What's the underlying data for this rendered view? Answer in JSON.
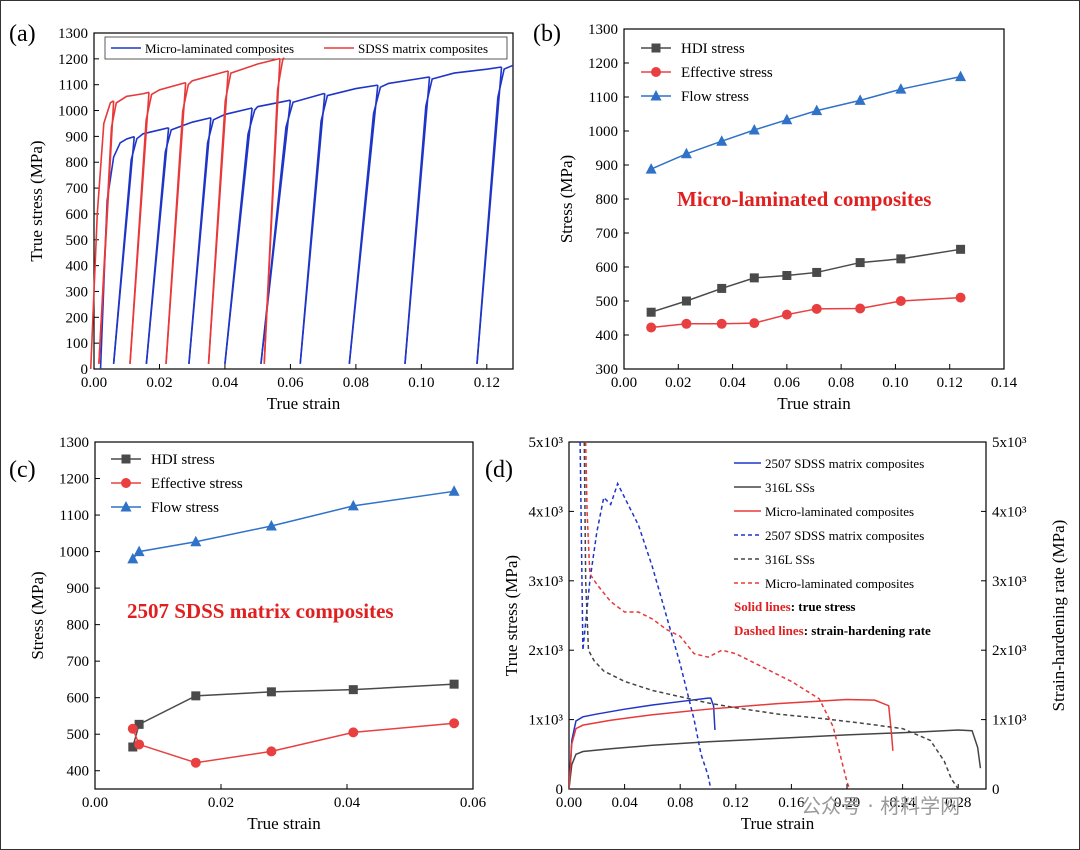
{
  "colors": {
    "blue": "#1f35c8",
    "red": "#e8393a",
    "gray": "#454545",
    "hdi": "#4a4a4a",
    "eff": "#e84040",
    "flow": "#2f72c8",
    "accent_red": "#e02020"
  },
  "watermark": "公众号 · 材料学网",
  "chart_data": [
    {
      "panel": "(a)",
      "type": "line",
      "xlabel": "True strain",
      "ylabel": "True stress (MPa)",
      "xlim": [
        0,
        0.128
      ],
      "ylim": [
        0,
        1300
      ],
      "xticks": [
        "0.00",
        "0.02",
        "0.04",
        "0.06",
        "0.08",
        "0.10",
        "0.12"
      ],
      "yticks": [
        "0",
        "100",
        "200",
        "300",
        "400",
        "500",
        "600",
        "700",
        "800",
        "900",
        "1000",
        "1100",
        "1200",
        "1300"
      ],
      "legend": [
        "Micro-laminated composites",
        "SDSS matrix composites"
      ],
      "series": [
        {
          "name": "Micro-laminated composites",
          "color": "blue",
          "envelope_x": [
            0.004,
            0.006,
            0.008,
            0.01,
            0.015,
            0.02,
            0.03,
            0.04,
            0.05,
            0.06,
            0.07,
            0.08,
            0.09,
            0.1,
            0.11,
            0.12,
            0.128
          ],
          "envelope_y": [
            650,
            820,
            875,
            890,
            910,
            925,
            955,
            985,
            1015,
            1040,
            1065,
            1085,
            1105,
            1125,
            1145,
            1160,
            1175
          ],
          "unload_x": [
            0.0123,
            0.0228,
            0.0357,
            0.0483,
            0.06,
            0.0705,
            0.0867,
            0.1025,
            0.1245
          ],
          "unload_to_x": [
            0.006,
            0.016,
            0.029,
            0.04,
            0.051,
            0.063,
            0.078,
            0.095,
            0.117
          ],
          "unload_to_y": 20
        },
        {
          "name": "SDSS matrix composites",
          "color": "red",
          "envelope_x": [
            0.001,
            0.003,
            0.005,
            0.007,
            0.01,
            0.015,
            0.02,
            0.03,
            0.04,
            0.05,
            0.058
          ],
          "envelope_y": [
            600,
            950,
            1030,
            1045,
            1055,
            1065,
            1080,
            1115,
            1150,
            1180,
            1205
          ],
          "unload_x": [
            0.006,
            0.0168,
            0.028,
            0.041,
            0.0568
          ],
          "unload_to_x": [
            0.0015,
            0.011,
            0.022,
            0.035,
            0.052
          ],
          "unload_to_y": 20
        }
      ]
    },
    {
      "panel": "(b)",
      "type": "line",
      "xlabel": "True strain",
      "ylabel": "Stress (MPa)",
      "xlim": [
        0,
        0.14
      ],
      "ylim": [
        300,
        1300
      ],
      "xticks": [
        "0.00",
        "0.02",
        "0.04",
        "0.06",
        "0.08",
        "0.10",
        "0.12",
        "0.14"
      ],
      "yticks": [
        "300",
        "400",
        "500",
        "600",
        "700",
        "800",
        "900",
        "1000",
        "1100",
        "1200",
        "1300"
      ],
      "annotation": "Micro-laminated composites",
      "x": [
        0.01,
        0.023,
        0.036,
        0.048,
        0.06,
        0.071,
        0.087,
        0.102,
        0.124
      ],
      "series": [
        {
          "name": "HDI stress",
          "color": "hdi",
          "marker": "square",
          "values": [
            467,
            500,
            537,
            568,
            575,
            584,
            613,
            624,
            652
          ]
        },
        {
          "name": "Effective stress",
          "color": "eff",
          "marker": "circle",
          "values": [
            422,
            433,
            433,
            435,
            460,
            477,
            478,
            500,
            510
          ]
        },
        {
          "name": "Flow stress",
          "color": "flow",
          "marker": "triangle",
          "values": [
            888,
            933,
            970,
            1003,
            1033,
            1060,
            1090,
            1123,
            1160
          ]
        }
      ]
    },
    {
      "panel": "(c)",
      "type": "line",
      "xlabel": "True strain",
      "ylabel": "Stress (MPa)",
      "xlim": [
        0,
        0.06
      ],
      "ylim": [
        350,
        1300
      ],
      "xticks": [
        "0.00",
        "0.02",
        "0.04",
        "0.06"
      ],
      "yticks": [
        "400",
        "500",
        "600",
        "700",
        "800",
        "900",
        "1000",
        "1100",
        "1200",
        "1300"
      ],
      "annotation": "2507 SDSS matrix composites",
      "x": [
        0.006,
        0.007,
        0.016,
        0.028,
        0.041,
        0.057
      ],
      "series": [
        {
          "name": "HDI stress",
          "color": "hdi",
          "marker": "square",
          "values": [
            465,
            527,
            605,
            616,
            622,
            637
          ]
        },
        {
          "name": "Effective stress",
          "color": "eff",
          "marker": "circle",
          "values": [
            515,
            472,
            422,
            453,
            505,
            530
          ]
        },
        {
          "name": "Flow stress",
          "color": "flow",
          "marker": "triangle",
          "values": [
            980,
            1000,
            1027,
            1070,
            1125,
            1165
          ]
        }
      ]
    },
    {
      "panel": "(d)",
      "type": "line",
      "xlabel": "True strain",
      "ylabel": "True stress (MPa)",
      "ylabel_right": "Strain-hardening rate (MPa)",
      "xlim": [
        0,
        0.3
      ],
      "ylim": [
        0,
        5000
      ],
      "xticks": [
        "0.00",
        "0.04",
        "0.08",
        "0.12",
        "0.16",
        "0.20",
        "0.24",
        "0.28"
      ],
      "yticks": [
        "0",
        "1x10³",
        "2x10³",
        "3x10³",
        "4x10³",
        "5x10³"
      ],
      "legend": [
        {
          "label": "2507 SDSS matrix composites",
          "color": "blue",
          "dash": false
        },
        {
          "label": "316L SSs",
          "color": "gray",
          "dash": false
        },
        {
          "label": "Micro-laminated composites",
          "color": "red",
          "dash": false
        },
        {
          "label": "2507 SDSS matrix composites",
          "color": "blue",
          "dash": true
        },
        {
          "label": "316L SSs",
          "color": "gray",
          "dash": true
        },
        {
          "label": "Micro-laminated composites",
          "color": "red",
          "dash": true
        }
      ],
      "note_solid_a": "Solid lines",
      "note_solid_b": ": true stress",
      "note_dashed_a": "Dashed lines",
      "note_dashed_b": ": strain-hardening rate",
      "series": [
        {
          "name": "2507 SDSS matrix composites",
          "color": "blue",
          "dash": false,
          "x": [
            0,
            0.002,
            0.005,
            0.01,
            0.02,
            0.04,
            0.06,
            0.08,
            0.1,
            0.102,
            0.104,
            0.105
          ],
          "y": [
            0,
            700,
            980,
            1040,
            1080,
            1150,
            1210,
            1260,
            1310,
            1310,
            1200,
            850
          ]
        },
        {
          "name": "316L SSs",
          "color": "gray",
          "dash": false,
          "x": [
            0,
            0.002,
            0.005,
            0.01,
            0.03,
            0.06,
            0.1,
            0.15,
            0.2,
            0.25,
            0.28,
            0.29,
            0.294,
            0.296
          ],
          "y": [
            0,
            350,
            500,
            540,
            580,
            630,
            680,
            730,
            780,
            820,
            850,
            840,
            600,
            300
          ]
        },
        {
          "name": "Micro-laminated composites",
          "color": "red",
          "dash": false,
          "x": [
            0,
            0.002,
            0.005,
            0.01,
            0.03,
            0.06,
            0.1,
            0.15,
            0.2,
            0.22,
            0.23,
            0.232,
            0.233
          ],
          "y": [
            0,
            650,
            870,
            920,
            990,
            1070,
            1150,
            1230,
            1290,
            1280,
            1200,
            800,
            550
          ]
        },
        {
          "name": "2507 SDSS matrix composites",
          "color": "blue",
          "dash": true,
          "x": [
            0.008,
            0.009,
            0.01,
            0.012,
            0.015,
            0.02,
            0.025,
            0.03,
            0.035,
            0.04,
            0.05,
            0.06,
            0.07,
            0.08,
            0.09,
            0.095,
            0.1,
            0.102
          ],
          "y": [
            5000,
            3500,
            2000,
            2400,
            3000,
            3700,
            4200,
            4100,
            4400,
            4200,
            3800,
            3200,
            2500,
            1800,
            1000,
            500,
            200,
            0
          ]
        },
        {
          "name": "316L SSs",
          "color": "gray",
          "dash": true,
          "x": [
            0.011,
            0.012,
            0.014,
            0.018,
            0.025,
            0.04,
            0.06,
            0.08,
            0.1,
            0.12,
            0.15,
            0.18,
            0.21,
            0.24,
            0.26,
            0.27,
            0.275,
            0.28
          ],
          "y": [
            5000,
            3000,
            2000,
            1850,
            1700,
            1550,
            1420,
            1330,
            1240,
            1170,
            1080,
            1020,
            950,
            870,
            700,
            400,
            150,
            0
          ]
        },
        {
          "name": "Micro-laminated composites",
          "color": "red",
          "dash": true,
          "x": [
            0.012,
            0.013,
            0.015,
            0.02,
            0.03,
            0.04,
            0.05,
            0.06,
            0.07,
            0.08,
            0.09,
            0.1,
            0.11,
            0.12,
            0.14,
            0.16,
            0.18,
            0.19,
            0.195,
            0.2,
            0.202
          ],
          "y": [
            5000,
            4000,
            3100,
            2950,
            2700,
            2550,
            2550,
            2450,
            2300,
            2200,
            1950,
            1900,
            2000,
            1950,
            1750,
            1550,
            1300,
            900,
            500,
            100,
            0
          ]
        }
      ]
    }
  ]
}
